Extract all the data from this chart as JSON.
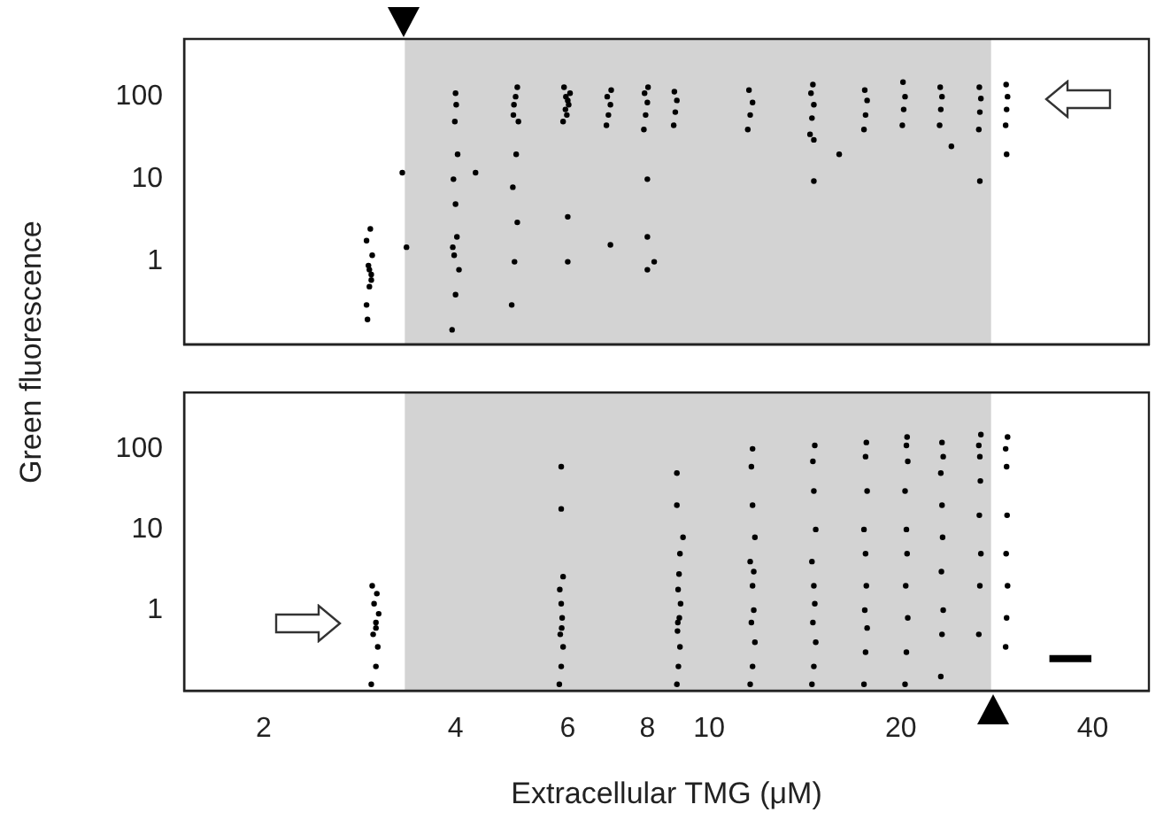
{
  "chart_data": [
    {
      "type": "scatter",
      "ylabel": "Green fluorescence",
      "log": "xy",
      "xlim": [
        1.5,
        49
      ],
      "ylim": [
        0.1,
        500
      ],
      "xticks": [
        2,
        4,
        6,
        8,
        10,
        20,
        40
      ],
      "yticks": [
        1,
        10,
        100
      ],
      "tick_labels": "y",
      "grid": false,
      "legend": false,
      "marker": "circle",
      "bands": [
        {
          "axis": "x",
          "from": 3.33,
          "to": 27.7,
          "color": "#d3d3d3"
        }
      ],
      "series": [
        {
          "color": "#000000",
          "x": [
            2.9,
            2.93,
            2.95,
            2.92,
            2.96,
            2.9,
            2.94,
            2.91,
            2.95,
            2.93,
            3.95,
            4.0,
            4.05,
            3.98,
            4.02,
            4.0,
            3.97,
            4.03,
            3.99,
            4.01,
            4.0,
            3.96,
            4.9,
            4.95,
            5.0,
            4.92,
            4.98,
            5.02,
            4.94,
            4.97,
            5.0,
            4.93,
            5.9,
            5.95,
            6.0,
            6.05,
            5.92,
            5.98,
            6.02,
            5.96,
            6.9,
            6.95,
            7.0,
            6.92,
            7.02,
            7.9,
            7.95,
            8.0,
            7.92,
            8.02,
            8.8,
            8.85,
            8.9,
            8.82,
            11.5,
            11.6,
            11.7,
            11.55,
            14.4,
            14.5,
            14.6,
            14.45,
            14.55,
            17.5,
            17.6,
            17.7,
            17.55,
            20.1,
            20.2,
            20.3,
            20.15,
            23.0,
            23.1,
            23.2,
            23.05,
            26.5,
            26.6,
            26.7,
            26.55,
            29.2,
            29.3,
            29.4,
            29.25,
            3.3,
            3.35,
            4.3,
            6.0,
            6.0,
            7.0,
            8.0,
            8.0,
            8.2,
            8.0,
            14.6,
            14.6,
            16.0,
            24.0,
            26.6,
            29.3
          ],
          "values": [
            0.3,
            0.5,
            0.7,
            0.9,
            1.2,
            1.8,
            2.5,
            0.2,
            0.6,
            0.8,
            0.15,
            0.4,
            0.8,
            1.2,
            2,
            5,
            10,
            20,
            50,
            80,
            110,
            1.5,
            0.3,
            1,
            3,
            8,
            20,
            50,
            80,
            100,
            130,
            60,
            50,
            70,
            90,
            110,
            130,
            60,
            80,
            100,
            45,
            60,
            80,
            100,
            120,
            40,
            60,
            85,
            110,
            130,
            45,
            65,
            90,
            115,
            40,
            60,
            85,
            120,
            35,
            55,
            80,
            110,
            140,
            40,
            60,
            90,
            120,
            45,
            70,
            100,
            150,
            45,
            70,
            100,
            130,
            40,
            65,
            95,
            130,
            45,
            70,
            100,
            140,
            12,
            1.5,
            12,
            1,
            3.5,
            1.6,
            0.8,
            2,
            1,
            10,
            9.5,
            30,
            20,
            25,
            9.5,
            20
          ]
        }
      ]
    },
    {
      "type": "scatter",
      "xlabel": "Extracellular TMG (μM)",
      "log": "xy",
      "xlim": [
        1.5,
        49
      ],
      "ylim": [
        0.1,
        500
      ],
      "xticks": [
        2,
        4,
        6,
        8,
        10,
        20,
        40
      ],
      "yticks": [
        1,
        10,
        100
      ],
      "grid": false,
      "legend": false,
      "marker": "circle",
      "bands": [
        {
          "axis": "x",
          "from": 3.33,
          "to": 27.7,
          "color": "#d3d3d3"
        }
      ],
      "series": [
        {
          "color": "#000000",
          "x": [
            2.95,
            3.0,
            3.02,
            2.97,
            3.0,
            3.03,
            2.98,
            3.01,
            2.96,
            3.0,
            5.82,
            5.86,
            5.9,
            5.84,
            5.88,
            5.86,
            5.83,
            5.9,
            5.87,
            5.86,
            5.86,
            8.9,
            8.95,
            9.0,
            8.92,
            8.98,
            9.02,
            8.94,
            8.97,
            9.0,
            8.93,
            8.9,
            8.9,
            9.1,
            11.6,
            11.7,
            11.8,
            11.65,
            11.75,
            11.7,
            11.6,
            11.8,
            11.7,
            11.65,
            11.7,
            11.75,
            14.5,
            14.6,
            14.7,
            14.55,
            14.65,
            14.6,
            14.5,
            14.7,
            14.6,
            14.55,
            14.65,
            17.5,
            17.6,
            17.7,
            17.55,
            17.65,
            17.6,
            17.5,
            17.7,
            17.6,
            17.65,
            20.3,
            20.4,
            20.5,
            20.35,
            20.45,
            20.4,
            20.3,
            20.5,
            20.4,
            20.45,
            23.1,
            23.2,
            23.3,
            23.15,
            23.25,
            23.2,
            23.1,
            23.3,
            23.2,
            26.5,
            26.6,
            26.7,
            26.55,
            26.65,
            26.6,
            26.5,
            26.7,
            29.2,
            29.3,
            29.4,
            29.25,
            29.35,
            29.3,
            29.2,
            29.4
          ],
          "values": [
            0.12,
            0.2,
            0.35,
            0.5,
            0.7,
            0.9,
            1.2,
            1.6,
            2.0,
            0.6,
            0.12,
            0.2,
            0.35,
            0.5,
            0.8,
            1.2,
            1.8,
            2.6,
            0.6,
            60,
            18,
            0.12,
            0.2,
            0.35,
            0.55,
            0.8,
            1.2,
            1.8,
            2.8,
            5,
            0.7,
            50,
            20,
            8,
            0.12,
            0.2,
            0.4,
            0.7,
            1,
            2,
            4,
            8,
            20,
            60,
            100,
            3,
            0.12,
            0.2,
            0.4,
            0.7,
            1.2,
            2,
            4,
            10,
            30,
            70,
            110,
            0.12,
            0.3,
            0.6,
            1,
            2,
            5,
            10,
            30,
            80,
            120,
            0.12,
            0.3,
            0.8,
            2,
            5,
            10,
            30,
            70,
            110,
            140,
            0.15,
            0.5,
            1,
            3,
            8,
            20,
            50,
            80,
            120,
            0.5,
            2,
            5,
            15,
            40,
            80,
            110,
            150,
            0.35,
            0.8,
            2,
            5,
            15,
            60,
            100,
            140
          ]
        },
        {
          "type": "line",
          "color": "#000000",
          "marker": "none",
          "line_style": "solid",
          "x": [
            34.2,
            39.8
          ],
          "values": [
            0.25,
            0.25
          ]
        }
      ]
    }
  ]
}
